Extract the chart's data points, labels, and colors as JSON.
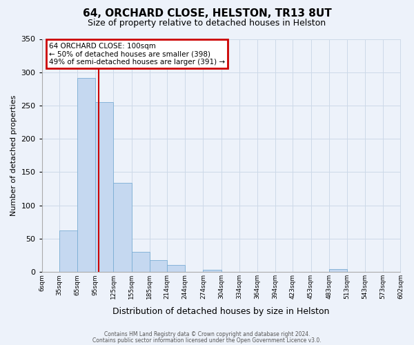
{
  "title": "64, ORCHARD CLOSE, HELSTON, TR13 8UT",
  "subtitle": "Size of property relative to detached houses in Helston",
  "xlabel": "Distribution of detached houses by size in Helston",
  "ylabel": "Number of detached properties",
  "bar_left_edges": [
    6,
    35,
    65,
    95,
    125,
    155,
    185,
    214,
    244,
    274,
    304,
    334,
    364,
    394,
    423,
    453,
    483,
    513,
    543,
    573
  ],
  "bar_widths": [
    29,
    30,
    30,
    30,
    30,
    30,
    29,
    30,
    30,
    30,
    30,
    30,
    30,
    29,
    30,
    30,
    30,
    30,
    30,
    29
  ],
  "bar_heights": [
    0,
    62,
    291,
    255,
    134,
    30,
    18,
    11,
    0,
    3,
    0,
    0,
    0,
    0,
    0,
    0,
    4,
    0,
    0,
    0
  ],
  "bar_color": "#c5d8f0",
  "bar_edge_color": "#7aadd4",
  "tick_labels": [
    "6sqm",
    "35sqm",
    "65sqm",
    "95sqm",
    "125sqm",
    "155sqm",
    "185sqm",
    "214sqm",
    "244sqm",
    "274sqm",
    "304sqm",
    "334sqm",
    "364sqm",
    "394sqm",
    "423sqm",
    "453sqm",
    "483sqm",
    "513sqm",
    "543sqm",
    "573sqm",
    "602sqm"
  ],
  "ylim": [
    0,
    350
  ],
  "yticks": [
    0,
    50,
    100,
    150,
    200,
    250,
    300,
    350
  ],
  "red_line_x": 100,
  "annotation_title": "64 ORCHARD CLOSE: 100sqm",
  "annotation_line1": "← 50% of detached houses are smaller (398)",
  "annotation_line2": "49% of semi-detached houses are larger (391) →",
  "annotation_box_color": "#ffffff",
  "annotation_box_edge": "#cc0000",
  "annotation_text_color": "#000000",
  "red_line_color": "#cc0000",
  "grid_color": "#ccd9e8",
  "background_color": "#edf2fa",
  "footer_line1": "Contains HM Land Registry data © Crown copyright and database right 2024.",
  "footer_line2": "Contains public sector information licensed under the Open Government Licence v3.0."
}
